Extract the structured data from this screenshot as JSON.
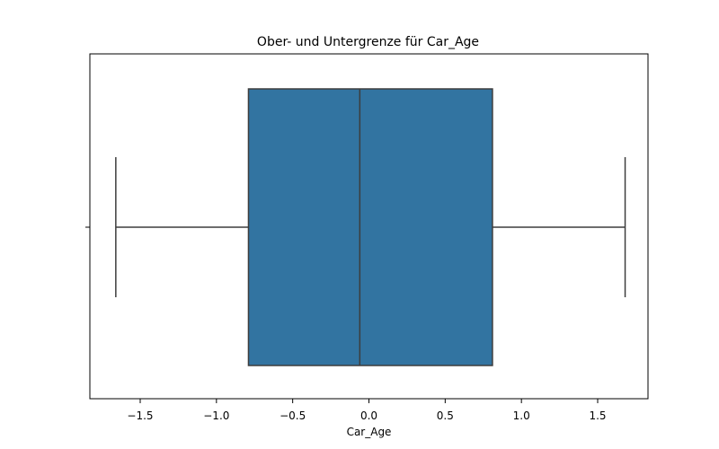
{
  "chart_data": {
    "type": "box",
    "title": "Ober- und Untergrenze für Car_Age",
    "xlabel": "Car_Age",
    "ylabel": "",
    "xlim": [
      -1.83,
      1.83
    ],
    "x_ticks": [
      -1.5,
      -1.0,
      -0.5,
      0.0,
      0.5,
      1.0,
      1.5
    ],
    "x_tick_labels": [
      "−1.5",
      "−1.0",
      "−0.5",
      "0.0",
      "0.5",
      "1.0",
      "1.5"
    ],
    "grid": false,
    "box": {
      "whisker_low": -1.66,
      "q1": -0.79,
      "median": -0.06,
      "q3": 0.81,
      "whisker_high": 1.68
    },
    "colors": {
      "box_fill": "#3274a1",
      "line": "#3d3d3d",
      "axis": "#000000"
    }
  }
}
